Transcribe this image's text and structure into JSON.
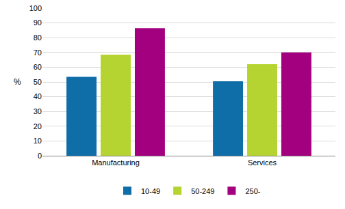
{
  "chart_data": {
    "type": "bar",
    "ylabel": "%",
    "categories": [
      "Manufacturing",
      "Services"
    ],
    "series": [
      {
        "name": "10-49",
        "color": "#0f6ea8",
        "values": [
          53.5,
          50.5
        ]
      },
      {
        "name": "50-249",
        "color": "#b6d431",
        "values": [
          68.5,
          62
        ]
      },
      {
        "name": "250-",
        "color": "#a2007e",
        "values": [
          86.5,
          70
        ]
      }
    ],
    "ylim": [
      0,
      100
    ],
    "yticks": [
      0,
      10,
      20,
      30,
      40,
      50,
      60,
      70,
      80,
      90,
      100
    ],
    "grid": true,
    "legend": "bottom"
  }
}
